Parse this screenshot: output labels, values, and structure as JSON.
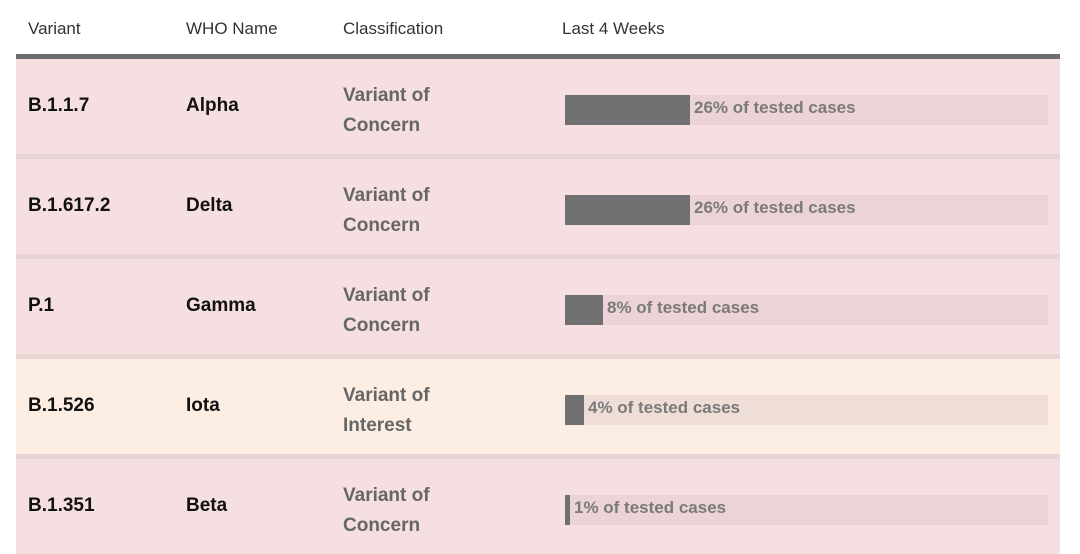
{
  "headers": {
    "variant": "Variant",
    "who_name": "WHO Name",
    "classification": "Classification",
    "last_4_weeks": "Last 4 Weeks"
  },
  "rows": [
    {
      "variant": "B.1.1.7",
      "who_name": "Alpha",
      "class_line1": "Variant of",
      "class_line2": "Concern",
      "share_pct": 26,
      "share_label": "26% of tested cases",
      "status": "concern"
    },
    {
      "variant": "B.1.617.2",
      "who_name": "Delta",
      "class_line1": "Variant of",
      "class_line2": "Concern",
      "share_pct": 26,
      "share_label": "26% of tested cases",
      "status": "concern"
    },
    {
      "variant": "P.1",
      "who_name": "Gamma",
      "class_line1": "Variant of",
      "class_line2": "Concern",
      "share_pct": 8,
      "share_label": "8% of tested cases",
      "status": "concern"
    },
    {
      "variant": "B.1.526",
      "who_name": "Iota",
      "class_line1": "Variant of",
      "class_line2": "Interest",
      "share_pct": 4,
      "share_label": "4% of tested cases",
      "status": "interest"
    },
    {
      "variant": "B.1.351",
      "who_name": "Beta",
      "class_line1": "Variant of",
      "class_line2": "Concern",
      "share_pct": 1,
      "share_label": "1% of tested cases",
      "status": "concern"
    }
  ],
  "colors": {
    "concern_bg": "#f5dfe1",
    "interest_bg": "#fdeee3",
    "bar_fill": "#707070",
    "header_rule": "#6e6e6e"
  }
}
